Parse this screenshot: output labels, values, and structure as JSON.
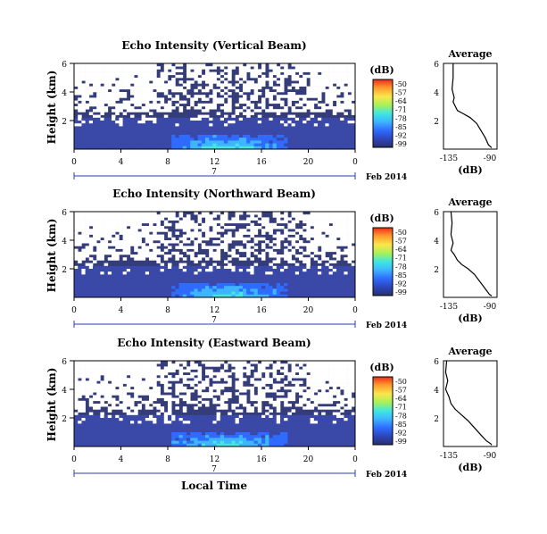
{
  "figure": {
    "xlabel": "Local Time",
    "date_label": "7",
    "month_label": "Feb 2014"
  },
  "chart_data": [
    {
      "type": "heatmap",
      "title": "Echo Intensity (Vertical Beam)",
      "ylabel": "Height (km)",
      "x_ticks": [
        "0",
        "4",
        "8",
        "12",
        "16",
        "20",
        "0"
      ],
      "y_ticks": [
        "2",
        "4",
        "6"
      ],
      "xlim": [
        0,
        24
      ],
      "ylim": [
        0,
        6
      ],
      "colorbar": {
        "label": "(dB)",
        "ticks": [
          "-50",
          "-57",
          "-64",
          "-71",
          "-78",
          "-85",
          "-92",
          "-99"
        ],
        "range": [
          -99,
          -50
        ]
      },
      "average": {
        "title": "Average",
        "xlabel": "(dB)",
        "x_ticks": [
          "-135",
          "-90"
        ],
        "y_ticks": [
          "2",
          "4",
          "6"
        ],
        "xlim": [
          -135,
          -85
        ],
        "ylim": [
          0,
          6
        ],
        "profile": [
          [
            -126,
            6.0
          ],
          [
            -126,
            5.0
          ],
          [
            -127,
            4.2
          ],
          [
            -125,
            3.6
          ],
          [
            -126,
            3.3
          ],
          [
            -124,
            3.0
          ],
          [
            -122,
            2.7
          ],
          [
            -117,
            2.5
          ],
          [
            -110,
            2.2
          ],
          [
            -104,
            1.8
          ],
          [
            -100,
            1.3
          ],
          [
            -96,
            0.8
          ],
          [
            -93,
            0.3
          ],
          [
            -90,
            0.1
          ]
        ]
      }
    },
    {
      "type": "heatmap",
      "title": "Echo Intensity (Northward Beam)",
      "ylabel": "Height (km)",
      "x_ticks": [
        "0",
        "4",
        "8",
        "12",
        "16",
        "20",
        "0"
      ],
      "y_ticks": [
        "2",
        "4",
        "6"
      ],
      "xlim": [
        0,
        24
      ],
      "ylim": [
        0,
        6
      ],
      "colorbar": {
        "label": "(dB)",
        "ticks": [
          "-50",
          "-57",
          "-64",
          "-71",
          "-78",
          "-85",
          "-92",
          "-99"
        ],
        "range": [
          -99,
          -50
        ]
      },
      "average": {
        "title": "Average",
        "xlabel": "(dB)",
        "x_ticks": [
          "-135",
          "-90"
        ],
        "y_ticks": [
          "2",
          "4",
          "6"
        ],
        "xlim": [
          -135,
          -85
        ],
        "ylim": [
          0,
          6
        ],
        "profile": [
          [
            -128,
            6.0
          ],
          [
            -127,
            5.2
          ],
          [
            -128,
            4.4
          ],
          [
            -126,
            3.8
          ],
          [
            -128,
            3.3
          ],
          [
            -125,
            3.0
          ],
          [
            -122,
            2.6
          ],
          [
            -118,
            2.3
          ],
          [
            -112,
            2.0
          ],
          [
            -106,
            1.6
          ],
          [
            -100,
            1.0
          ],
          [
            -95,
            0.5
          ],
          [
            -92,
            0.2
          ],
          [
            -90,
            0.1
          ]
        ]
      }
    },
    {
      "type": "heatmap",
      "title": "Echo Intensity (Eastward Beam)",
      "ylabel": "Height (km)",
      "x_ticks": [
        "0",
        "4",
        "8",
        "12",
        "16",
        "20",
        "0"
      ],
      "y_ticks": [
        "2",
        "4",
        "6"
      ],
      "xlim": [
        0,
        24
      ],
      "ylim": [
        0,
        6
      ],
      "colorbar": {
        "label": "(dB)",
        "ticks": [
          "-50",
          "-57",
          "-64",
          "-71",
          "-78",
          "-85",
          "-92",
          "-99"
        ],
        "range": [
          -99,
          -50
        ]
      },
      "average": {
        "title": "Average",
        "xlabel": "(dB)",
        "x_ticks": [
          "-135",
          "-90"
        ],
        "y_ticks": [
          "2",
          "4",
          "6"
        ],
        "xlim": [
          -135,
          -85
        ],
        "ylim": [
          0,
          6
        ],
        "profile": [
          [
            -132,
            6.0
          ],
          [
            -133,
            5.2
          ],
          [
            -131,
            4.6
          ],
          [
            -133,
            4.0
          ],
          [
            -130,
            3.5
          ],
          [
            -128,
            3.0
          ],
          [
            -124,
            2.6
          ],
          [
            -118,
            2.2
          ],
          [
            -112,
            1.8
          ],
          [
            -106,
            1.3
          ],
          [
            -100,
            0.8
          ],
          [
            -95,
            0.4
          ],
          [
            -91,
            0.2
          ],
          [
            -90,
            0.1
          ]
        ]
      }
    }
  ]
}
